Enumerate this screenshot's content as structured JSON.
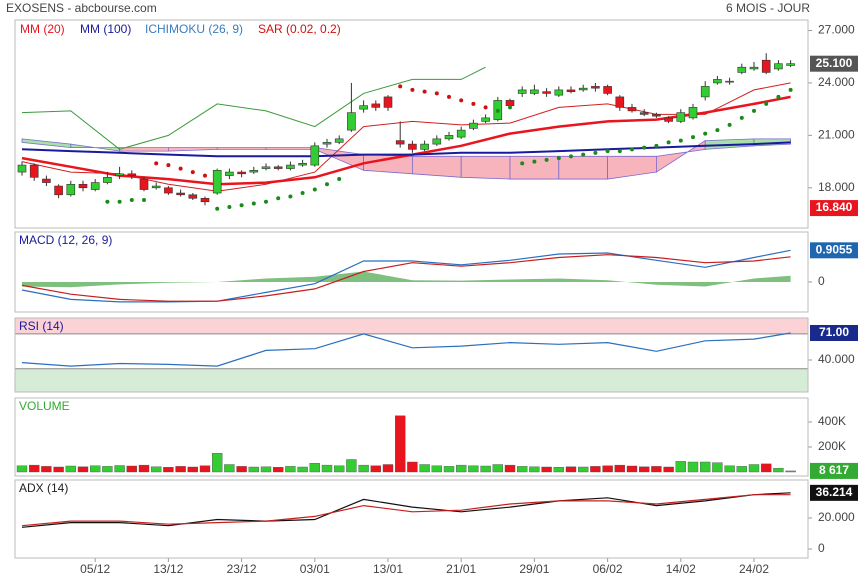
{
  "header": {
    "title": "EXOSENS - abcbourse.com",
    "period": "6 MOIS - JOUR"
  },
  "chart_data": [
    {
      "type": "candlestick",
      "categories": [
        null,
        null,
        null,
        null,
        null,
        null,
        "05/12",
        null,
        null,
        null,
        null,
        null,
        "13/12",
        null,
        null,
        null,
        null,
        null,
        "23/12",
        null,
        null,
        null,
        null,
        null,
        "03/01",
        null,
        null,
        null,
        null,
        null,
        "13/01",
        null,
        null,
        null,
        null,
        null,
        "21/01",
        null,
        null,
        null,
        null,
        null,
        "29/01",
        null,
        null,
        null,
        null,
        null,
        "06/02",
        null,
        null,
        null,
        null,
        null,
        "14/02",
        null,
        null,
        null,
        null,
        null,
        "24/02",
        null,
        null,
        null
      ],
      "open": [
        18.9,
        19.3,
        18.5,
        18.1,
        17.6,
        18.2,
        17.9,
        18.3,
        18.7,
        18.8,
        18.5,
        18.0,
        18.0,
        17.7,
        17.6,
        17.4,
        17.7,
        18.7,
        18.9,
        18.9,
        19.1,
        19.2,
        19.1,
        19.3,
        19.3,
        20.5,
        20.6,
        21.3,
        22.5,
        22.8,
        23.2,
        20.7,
        20.5,
        20.2,
        20.5,
        20.8,
        20.9,
        21.4,
        21.8,
        21.9,
        23.0,
        23.4,
        23.4,
        23.5,
        23.3,
        23.6,
        23.6,
        23.8,
        23.8,
        23.2,
        22.6,
        22.3,
        22.2,
        22.0,
        21.8,
        22.0,
        23.2,
        24.0,
        24.1,
        24.6,
        24.8,
        25.3,
        24.8,
        25.0
      ],
      "close": [
        19.3,
        18.6,
        18.3,
        17.6,
        18.2,
        18.0,
        18.3,
        18.6,
        18.8,
        18.7,
        17.9,
        18.1,
        17.7,
        17.6,
        17.4,
        17.2,
        19.0,
        18.9,
        18.8,
        19.0,
        19.2,
        19.1,
        19.3,
        19.4,
        20.4,
        20.6,
        20.8,
        22.3,
        22.7,
        22.6,
        22.6,
        20.5,
        20.2,
        20.5,
        20.8,
        21.0,
        21.3,
        21.7,
        22.0,
        23.0,
        22.7,
        23.6,
        23.6,
        23.4,
        23.6,
        23.5,
        23.7,
        23.7,
        23.4,
        22.6,
        22.4,
        22.2,
        22.1,
        21.8,
        22.3,
        22.6,
        23.8,
        24.2,
        24.1,
        24.9,
        24.9,
        24.6,
        25.1,
        25.1
      ],
      "high": [
        19.5,
        19.4,
        18.7,
        18.2,
        18.4,
        18.4,
        18.5,
        18.9,
        19.2,
        19.0,
        18.6,
        18.3,
        18.1,
        17.9,
        17.7,
        17.5,
        19.1,
        19.1,
        19.0,
        19.2,
        19.4,
        19.3,
        19.5,
        19.6,
        20.6,
        20.8,
        21.0,
        24.0,
        23.0,
        23.0,
        23.3,
        21.8,
        20.7,
        20.7,
        21.0,
        21.2,
        21.5,
        21.9,
        22.2,
        23.2,
        23.1,
        23.8,
        23.9,
        23.7,
        23.8,
        23.8,
        23.9,
        24.0,
        23.9,
        23.3,
        22.8,
        22.5,
        22.3,
        22.1,
        22.5,
        22.8,
        24.1,
        24.4,
        24.3,
        25.1,
        25.2,
        25.7,
        25.3,
        25.3
      ],
      "low": [
        18.7,
        18.4,
        18.1,
        17.4,
        17.5,
        17.8,
        17.8,
        18.2,
        18.5,
        18.5,
        17.8,
        17.9,
        17.6,
        17.5,
        17.3,
        17.0,
        17.6,
        18.5,
        18.6,
        18.8,
        19.0,
        19.0,
        19.0,
        19.2,
        19.2,
        20.3,
        20.5,
        21.2,
        22.3,
        22.4,
        22.4,
        20.3,
        20.0,
        20.1,
        20.4,
        20.7,
        20.8,
        21.3,
        21.7,
        21.8,
        22.5,
        23.2,
        23.3,
        23.2,
        23.2,
        23.4,
        23.5,
        23.5,
        23.3,
        22.4,
        22.3,
        22.1,
        22.0,
        21.7,
        21.7,
        21.9,
        23.0,
        23.9,
        23.9,
        24.5,
        24.7,
        24.5,
        24.7,
        24.9
      ],
      "colors": {
        "up": "#33cc33",
        "down": "#e8141e"
      },
      "ylim": [
        15.7,
        27.6
      ],
      "yticks": [
        {
          "value": 27,
          "label": "27.000"
        },
        {
          "value": 24,
          "label": "24.000"
        },
        {
          "value": 21,
          "label": "21.000"
        },
        {
          "value": 18,
          "label": "18.000"
        }
      ],
      "series": [
        {
          "name": "MM (20)",
          "color": "#e8141e",
          "x": [
            0,
            4,
            8,
            12,
            16,
            20,
            24,
            28,
            32,
            36,
            40,
            44,
            48,
            52,
            56,
            60,
            63
          ],
          "values": [
            19.7,
            19.2,
            18.7,
            18.5,
            18.2,
            18.3,
            18.6,
            19.4,
            19.9,
            20.4,
            21.1,
            21.5,
            21.8,
            21.9,
            22.3,
            22.8,
            23.2
          ]
        },
        {
          "name": "MM (100)",
          "color": "#1a1a9c",
          "x": [
            0,
            4,
            8,
            12,
            16,
            20,
            24,
            28,
            32,
            36,
            40,
            44,
            48,
            52,
            56,
            60,
            63
          ],
          "values": [
            20.2,
            20.1,
            20.0,
            19.9,
            19.8,
            19.8,
            19.8,
            19.9,
            19.9,
            20.0,
            20.0,
            20.1,
            20.2,
            20.3,
            20.4,
            20.5,
            20.6
          ]
        }
      ],
      "ichimoku": {
        "name": "ICHIMOKU (26, 9)",
        "color": "#3a7dc0",
        "x": [
          0,
          4,
          8,
          12,
          16,
          20,
          24,
          28,
          32,
          36,
          40,
          44,
          48,
          52,
          56,
          60,
          63
        ],
        "span_a": [
          20.8,
          20.5,
          20.1,
          20.1,
          20.2,
          20.2,
          20.2,
          19.0,
          18.8,
          18.6,
          18.5,
          18.5,
          18.5,
          18.9,
          20.7,
          20.8,
          20.8
        ],
        "span_b": [
          20.6,
          20.3,
          20.3,
          20.3,
          20.3,
          20.3,
          20.3,
          19.9,
          19.8,
          19.8,
          19.8,
          19.8,
          19.8,
          19.8,
          20.2,
          20.4,
          20.5
        ],
        "cloud_colors": {
          "up": "#a8e0a8",
          "down": "#f8b4bc"
        },
        "tenkan_color": "#d02020",
        "tenkan": [
          19.5,
          18.9,
          18.8,
          18.2,
          17.8,
          18.2,
          18.9,
          21.5,
          21.8,
          21.6,
          21.7,
          22.6,
          22.8,
          22.2,
          22.2,
          23.6,
          24.0
        ],
        "chikou_color": "#3a9a3a",
        "chikou_x": [
          0,
          4,
          8,
          12,
          16,
          20,
          24,
          28,
          32,
          36,
          38
        ],
        "chikou": [
          22.3,
          22.4,
          20.2,
          21.0,
          22.8,
          22.4,
          21.5,
          23.4,
          24.2,
          24.2,
          24.9
        ]
      },
      "sar": {
        "name": "SAR (0.02, 0.2)",
        "color": "#d01010",
        "values": [
          null,
          null,
          null,
          null,
          null,
          null,
          null,
          17.2,
          17.2,
          17.3,
          17.3,
          19.4,
          19.3,
          19.1,
          18.9,
          18.7,
          16.8,
          16.9,
          17.0,
          17.1,
          17.2,
          17.4,
          17.5,
          17.7,
          17.9,
          18.2,
          18.5,
          null,
          null,
          null,
          null,
          23.8,
          23.6,
          23.5,
          23.4,
          23.2,
          23.0,
          22.8,
          22.6,
          22.4,
          22.6,
          19.4,
          19.5,
          19.6,
          19.7,
          19.8,
          19.9,
          20.0,
          20.1,
          20.1,
          20.2,
          20.3,
          20.4,
          20.6,
          20.7,
          20.9,
          21.1,
          21.3,
          21.6,
          22.0,
          22.4,
          22.8,
          23.2,
          23.6
        ],
        "colors": {
          "below": "#1a8a1a",
          "above": "#d01010"
        }
      },
      "badges": [
        {
          "value": 25.1,
          "label": "25.100",
          "color": "#555555"
        },
        {
          "value": 16.84,
          "label": "16.840",
          "color": "#e8141e"
        }
      ]
    },
    {
      "type": "line",
      "title": "MACD (12, 26, 9)",
      "title_color": "#1a1a9c",
      "x": [
        0,
        4,
        8,
        12,
        16,
        20,
        24,
        28,
        32,
        36,
        40,
        44,
        48,
        52,
        56,
        60,
        63
      ],
      "series": [
        {
          "color": "#2a6fc0",
          "values": [
            -0.23,
            -0.5,
            -0.57,
            -0.57,
            -0.55,
            -0.3,
            -0.05,
            0.6,
            0.6,
            0.49,
            0.62,
            0.8,
            0.83,
            0.62,
            0.42,
            0.7,
            0.9055
          ]
        },
        {
          "color": "#c81e1e",
          "values": [
            -0.1,
            -0.35,
            -0.5,
            -0.55,
            -0.55,
            -0.4,
            -0.2,
            0.3,
            0.55,
            0.45,
            0.55,
            0.7,
            0.78,
            0.7,
            0.55,
            0.6,
            0.72
          ]
        }
      ],
      "histogram": {
        "color": "#7fbf7f",
        "values": [
          -0.13,
          -0.15,
          -0.07,
          -0.02,
          0,
          0.1,
          0.15,
          0.3,
          0.05,
          0.04,
          0.07,
          0.1,
          0.05,
          -0.08,
          -0.13,
          0.1,
          0.18
        ]
      },
      "ylim": [
        -0.86,
        1.43
      ],
      "yticks": [
        0
      ],
      "badge": {
        "value": 0.9055,
        "label": "0.9055",
        "color": "#1e66b0"
      }
    },
    {
      "type": "line",
      "title": "RSI (14)",
      "title_color": "#1a1a9c",
      "x": [
        0,
        4,
        8,
        12,
        16,
        20,
        24,
        28,
        32,
        36,
        40,
        44,
        48,
        52,
        56,
        60,
        63
      ],
      "series": [
        {
          "color": "#2a6fc0",
          "values": [
            37,
            33,
            36,
            35,
            33,
            51,
            53,
            70,
            54,
            56,
            60,
            58,
            60,
            50,
            62,
            64,
            71
          ]
        }
      ],
      "zones": {
        "high": 70,
        "low": 30,
        "high_color": "#fbd3d6",
        "low_color": "#d6ecd6"
      },
      "ylim": [
        3.3,
        88.2
      ],
      "yticks": [
        {
          "value": 40,
          "label": "40.000"
        }
      ],
      "badge": {
        "value": 71,
        "label": "71.00",
        "color": "#1a2a8c"
      }
    },
    {
      "type": "bar",
      "title": "VOLUME",
      "title_color": "#33aa33",
      "values": [
        50000,
        55000,
        45000,
        40000,
        48000,
        42000,
        50000,
        45000,
        52000,
        48000,
        55000,
        42000,
        38000,
        45000,
        40000,
        50000,
        150000,
        60000,
        45000,
        40000,
        42000,
        38000,
        45000,
        40000,
        70000,
        55000,
        50000,
        100000,
        55000,
        50000,
        60000,
        450000,
        80000,
        60000,
        50000,
        45000,
        55000,
        50000,
        48000,
        60000,
        55000,
        45000,
        42000,
        40000,
        38000,
        42000,
        40000,
        45000,
        50000,
        55000,
        48000,
        42000,
        45000,
        40000,
        85000,
        80000,
        80000,
        75000,
        50000,
        45000,
        60000,
        65000,
        30000,
        8617
      ],
      "colors": {
        "up": "#33cc33",
        "down": "#e8141e"
      },
      "ylim": [
        -32000,
        592000
      ],
      "yticks": [
        {
          "value": 400000,
          "label": "400K"
        },
        {
          "value": 200000,
          "label": "200K"
        }
      ],
      "badge": {
        "value": 8617,
        "label": "8 617",
        "color": "#33aa33"
      }
    },
    {
      "type": "line",
      "title": "ADX (14)",
      "title_color": "#222222",
      "x": [
        0,
        4,
        8,
        12,
        16,
        20,
        24,
        28,
        32,
        36,
        40,
        44,
        48,
        52,
        56,
        60,
        63
      ],
      "series": [
        {
          "color": "#111111",
          "values": [
            14,
            17,
            17,
            15,
            19,
            18,
            19,
            32,
            27,
            24,
            27,
            31,
            33,
            28,
            31,
            35,
            36.214
          ]
        },
        {
          "color": "#c81e1e",
          "values": [
            15,
            18,
            18,
            16,
            17,
            18,
            21,
            28,
            24,
            25,
            29,
            31,
            31,
            29,
            32,
            35,
            35
          ]
        }
      ],
      "ylim": [
        -5.8,
        44.5
      ],
      "yticks": [
        {
          "value": 20,
          "label": "20.000"
        },
        0
      ],
      "badge": {
        "value": 36.214,
        "label": "36.214",
        "color": "#111111"
      }
    }
  ]
}
